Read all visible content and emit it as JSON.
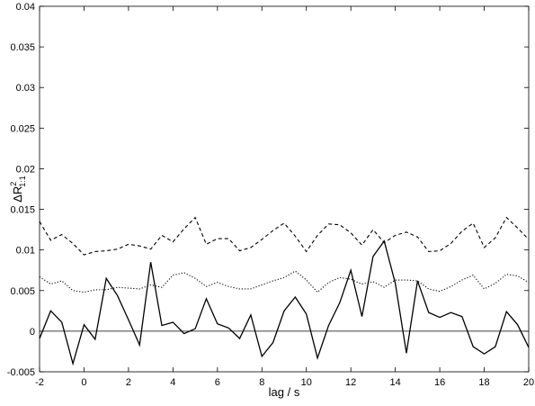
{
  "chart_data": {
    "type": "line",
    "x_label": "lag / s",
    "y_label": {
      "base": "ΔR",
      "sup": "2",
      "sub": "1:1"
    },
    "x": [
      -2,
      -1.5,
      -1,
      -0.5,
      0,
      0.5,
      1,
      1.5,
      2,
      2.5,
      3,
      3.5,
      4,
      4.5,
      5,
      5.5,
      6,
      6.5,
      7,
      7.5,
      8,
      8.5,
      9,
      9.5,
      10,
      10.5,
      11,
      11.5,
      12,
      12.5,
      13,
      13.5,
      14,
      14.5,
      15,
      15.5,
      16,
      16.5,
      17,
      17.5,
      18,
      18.5,
      19,
      19.5,
      20
    ],
    "series": [
      {
        "color": "#000000",
        "dash": "dashed",
        "values": [
          0.0135,
          0.0112,
          0.0119,
          0.0108,
          0.0094,
          0.0098,
          0.0099,
          0.0101,
          0.0107,
          0.0105,
          0.0101,
          0.0118,
          0.011,
          0.0126,
          0.014,
          0.0107,
          0.0114,
          0.0114,
          0.0099,
          0.0103,
          0.0113,
          0.0124,
          0.0133,
          0.0117,
          0.0098,
          0.0118,
          0.0132,
          0.0131,
          0.0121,
          0.0106,
          0.0125,
          0.0109,
          0.0118,
          0.0122,
          0.0116,
          0.0098,
          0.0099,
          0.0108,
          0.0123,
          0.0133,
          0.0103,
          0.0115,
          0.014,
          0.0127,
          0.0113
        ]
      },
      {
        "color": "#000000",
        "dash": "dotted",
        "values": [
          0.0067,
          0.0058,
          0.0062,
          0.005,
          0.0048,
          0.0051,
          0.0051,
          0.0054,
          0.0053,
          0.0052,
          0.0057,
          0.0054,
          0.0069,
          0.0072,
          0.0065,
          0.0055,
          0.006,
          0.0055,
          0.0052,
          0.0052,
          0.0057,
          0.0062,
          0.0066,
          0.0074,
          0.0063,
          0.0048,
          0.006,
          0.0066,
          0.0064,
          0.0058,
          0.0061,
          0.0054,
          0.0063,
          0.0063,
          0.0062,
          0.0052,
          0.0049,
          0.0055,
          0.0063,
          0.0069,
          0.0052,
          0.0059,
          0.007,
          0.0068,
          0.006
        ]
      },
      {
        "color": "#000000",
        "dash": "solid",
        "values": [
          -0.0009,
          0.0025,
          0.0011,
          -0.004,
          0.0008,
          -0.001,
          0.0065,
          0.0044,
          0.0014,
          -0.0017,
          0.0085,
          0.0007,
          0.0011,
          -0.0003,
          0.0003,
          0.004,
          0.0009,
          0.0004,
          -0.0009,
          0.002,
          -0.0031,
          -0.0014,
          0.0025,
          0.0042,
          0.0021,
          -0.0033,
          0.0007,
          0.0035,
          0.0075,
          0.0018,
          0.0092,
          0.0111,
          0.0059,
          -0.0027,
          0.0062,
          0.0023,
          0.0017,
          0.0023,
          0.0018,
          -0.0019,
          -0.0028,
          -0.0019,
          0.0024,
          0.0008,
          -0.002
        ]
      }
    ],
    "hlines": [
      0
    ],
    "xlim": [
      -2,
      20
    ],
    "xticks": [
      -2,
      0,
      2,
      4,
      6,
      8,
      10,
      12,
      14,
      16,
      18,
      20
    ],
    "ylim": [
      -0.005,
      0.04
    ],
    "yticks": [
      -0.005,
      0,
      0.005,
      0.01,
      0.015,
      0.02,
      0.025,
      0.03,
      0.035,
      0.04
    ]
  }
}
